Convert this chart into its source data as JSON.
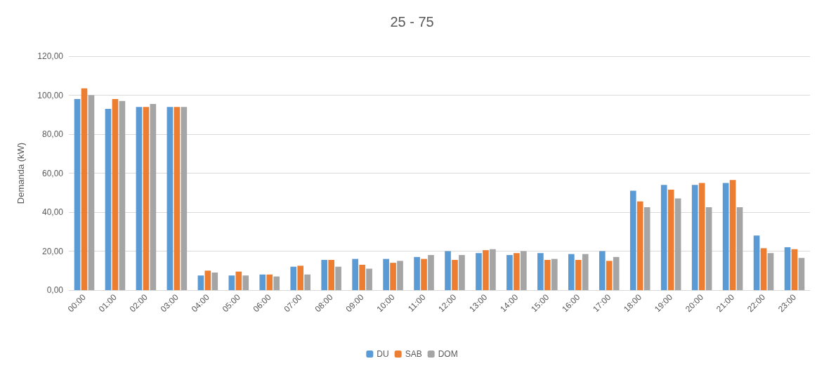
{
  "chart_data": {
    "type": "bar",
    "title": "25 - 75",
    "ylabel": "Demanda (kW)",
    "categories": [
      "00:00",
      "01:00",
      "02:00",
      "03:00",
      "04:00",
      "05:00",
      "06:00",
      "07:00",
      "08:00",
      "09:00",
      "10:00",
      "11:00",
      "12:00",
      "13:00",
      "14:00",
      "15:00",
      "16:00",
      "17:00",
      "18:00",
      "19:00",
      "20:00",
      "21:00",
      "22:00",
      "23:00"
    ],
    "series": [
      {
        "name": "DU",
        "color": "#5b9bd5",
        "values": [
          98,
          93,
          94,
          94,
          7.5,
          7.5,
          8,
          12,
          15.5,
          16,
          16,
          17,
          20,
          19,
          18,
          19,
          18.5,
          20,
          51,
          54,
          54,
          55,
          28,
          22
        ]
      },
      {
        "name": "SAB",
        "color": "#ed7d31",
        "values": [
          103.5,
          98,
          94,
          94,
          10,
          9.5,
          8,
          12.5,
          15.5,
          13,
          14,
          16,
          15.5,
          20.5,
          19,
          15.5,
          15.5,
          15,
          45.5,
          51.5,
          55,
          56.5,
          21.5,
          21
        ]
      },
      {
        "name": "DOM",
        "color": "#a5a5a5",
        "values": [
          100,
          97,
          95.5,
          94,
          9,
          7.5,
          7,
          8,
          12,
          11,
          15,
          18,
          18,
          21,
          20,
          16,
          18.5,
          17,
          42.5,
          47,
          42.5,
          42.5,
          19,
          16.5
        ]
      }
    ],
    "ylim": [
      0,
      120
    ],
    "yticks": [
      {
        "value": 0,
        "label": "0,00"
      },
      {
        "value": 20,
        "label": "20,00"
      },
      {
        "value": 40,
        "label": "40,00"
      },
      {
        "value": 60,
        "label": "60,00"
      },
      {
        "value": 80,
        "label": "80,00"
      },
      {
        "value": 100,
        "label": "100,00"
      },
      {
        "value": 120,
        "label": "120,00"
      }
    ],
    "grid": "y",
    "legend": "bottom"
  }
}
